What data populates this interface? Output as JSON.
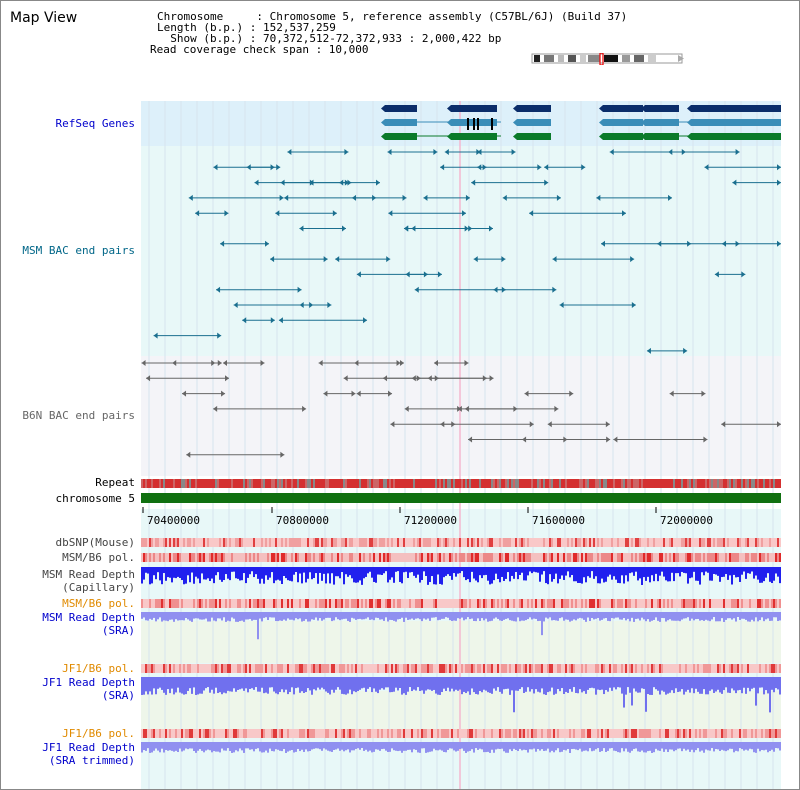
{
  "map_title": "Map View",
  "header": {
    "chromosome_key": "Chromosome     ",
    "chromosome_val": ": Chromosome 5, reference assembly (C57BL/6J) (Build 37)",
    "length_key": "Length (b.p.) ",
    "length_val": ": 152,537,259",
    "show_key": "  Show (b.p.) ",
    "show_val": ": 70,372,512-72,372,933 : 2,000,422 bp",
    "coverage_text": "Read coverage check span : 10,000"
  },
  "tracks": {
    "refseq": {
      "label": "RefSeq Genes",
      "color": "#0000cc"
    },
    "msm_bac": {
      "label": "MSM BAC end pairs",
      "color": "#006688"
    },
    "b6n_bac": {
      "label": "B6N BAC end pairs",
      "color": "#666666"
    },
    "repeat": {
      "label": "Repeat"
    },
    "chromosome": {
      "label": "chromosome 5"
    },
    "dbsnp": {
      "label": "dbSNP(Mouse)",
      "color": "#444444"
    },
    "msm_b6_pol": {
      "label": "MSM/B6 pol.",
      "color": "#444444"
    },
    "msm_depth_cap": {
      "label1": "MSM Read Depth",
      "label2": "(Capillary)",
      "color": "#444444"
    },
    "msm_b6_pol2": {
      "label": "MSM/B6 pol.",
      "color": "#e08a00"
    },
    "msm_depth_sra": {
      "label1": "MSM Read Depth",
      "label2": "(SRA)",
      "color": "#0000cc"
    },
    "jf1_b6_pol": {
      "label": "JF1/B6 pol.",
      "color": "#e08a00"
    },
    "jf1_depth_sra": {
      "label1": "JF1 Read Depth",
      "label2": "(SRA)",
      "color": "#0000cc"
    },
    "jf1_b6_pol2": {
      "label": "JF1/B6 pol.",
      "color": "#e08a00"
    },
    "jf1_depth_trim": {
      "label1": "JF1 Read Depth",
      "label2": "(SRA trimmed)",
      "color": "#0000cc"
    }
  },
  "axis": {
    "ticks": [
      "70400000",
      "70800000",
      "71200000",
      "71600000",
      "72000000"
    ]
  }
}
